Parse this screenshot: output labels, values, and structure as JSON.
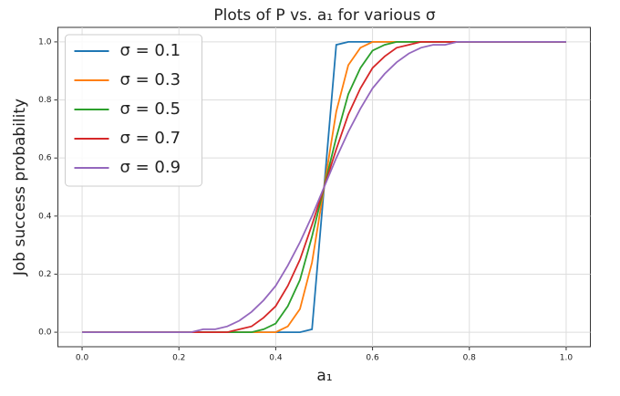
{
  "chart_data": {
    "type": "line",
    "title": "Plots of P vs. a₁ for various σ",
    "xlabel": "a₁",
    "ylabel": "Job success probability",
    "x": [
      0,
      0.025,
      0.05,
      0.075,
      0.1,
      0.125,
      0.15,
      0.175,
      0.2,
      0.225,
      0.25,
      0.275,
      0.3,
      0.325,
      0.35,
      0.375,
      0.4,
      0.425,
      0.45,
      0.475,
      0.5,
      0.525,
      0.55,
      0.575,
      0.6,
      0.625,
      0.65,
      0.675,
      0.7,
      0.725,
      0.75,
      0.775,
      0.8,
      0.825,
      0.85,
      0.875,
      0.9,
      0.925,
      0.95,
      0.975,
      1
    ],
    "series": [
      {
        "name": "σ = 0.1",
        "color": "#1f77b4",
        "values": [
          0,
          0,
          0,
          0,
          0,
          0,
          0,
          0,
          0,
          0,
          0,
          0,
          0,
          0,
          0,
          0,
          0,
          0,
          0,
          0.01,
          0.5,
          0.99,
          1,
          1,
          1,
          1,
          1,
          1,
          1,
          1,
          1,
          1,
          1,
          1,
          1,
          1,
          1,
          1,
          1,
          1,
          1
        ]
      },
      {
        "name": "σ = 0.3",
        "color": "#ff7f0e",
        "values": [
          0,
          0,
          0,
          0,
          0,
          0,
          0,
          0,
          0,
          0,
          0,
          0,
          0,
          0,
          0,
          0,
          0,
          0.02,
          0.08,
          0.24,
          0.5,
          0.76,
          0.92,
          0.98,
          1,
          1,
          1,
          1,
          1,
          1,
          1,
          1,
          1,
          1,
          1,
          1,
          1,
          1,
          1,
          1,
          1
        ]
      },
      {
        "name": "σ = 0.5",
        "color": "#2ca02c",
        "values": [
          0,
          0,
          0,
          0,
          0,
          0,
          0,
          0,
          0,
          0,
          0,
          0,
          0,
          0,
          0,
          0.01,
          0.03,
          0.09,
          0.18,
          0.33,
          0.5,
          0.67,
          0.82,
          0.91,
          0.97,
          0.99,
          1,
          1,
          1,
          1,
          1,
          1,
          1,
          1,
          1,
          1,
          1,
          1,
          1,
          1,
          1
        ]
      },
      {
        "name": "σ = 0.7",
        "color": "#d62728",
        "values": [
          0,
          0,
          0,
          0,
          0,
          0,
          0,
          0,
          0,
          0,
          0,
          0,
          0,
          0.01,
          0.02,
          0.05,
          0.09,
          0.16,
          0.25,
          0.37,
          0.5,
          0.63,
          0.75,
          0.84,
          0.91,
          0.95,
          0.98,
          0.99,
          1,
          1,
          1,
          1,
          1,
          1,
          1,
          1,
          1,
          1,
          1,
          1,
          1
        ]
      },
      {
        "name": "σ = 0.9",
        "color": "#9467bd",
        "values": [
          0,
          0,
          0,
          0,
          0,
          0,
          0,
          0,
          0,
          0,
          0.01,
          0.01,
          0.02,
          0.04,
          0.07,
          0.11,
          0.16,
          0.23,
          0.31,
          0.4,
          0.5,
          0.6,
          0.69,
          0.77,
          0.84,
          0.89,
          0.93,
          0.96,
          0.98,
          0.99,
          0.99,
          1,
          1,
          1,
          1,
          1,
          1,
          1,
          1,
          1,
          1
        ]
      }
    ],
    "xlim": [
      -0.05,
      1.05
    ],
    "ylim": [
      -0.05,
      1.05
    ],
    "xticks": [
      {
        "value": 0,
        "label": "0.0"
      },
      0.2,
      0.4,
      0.6,
      0.8,
      {
        "value": 1,
        "label": "1.0"
      }
    ],
    "yticks": [
      {
        "value": 0,
        "label": "0.0"
      },
      0.2,
      0.4,
      0.6,
      0.8,
      {
        "value": 1,
        "label": "1.0"
      }
    ],
    "grid": true,
    "legend": "upper left"
  }
}
